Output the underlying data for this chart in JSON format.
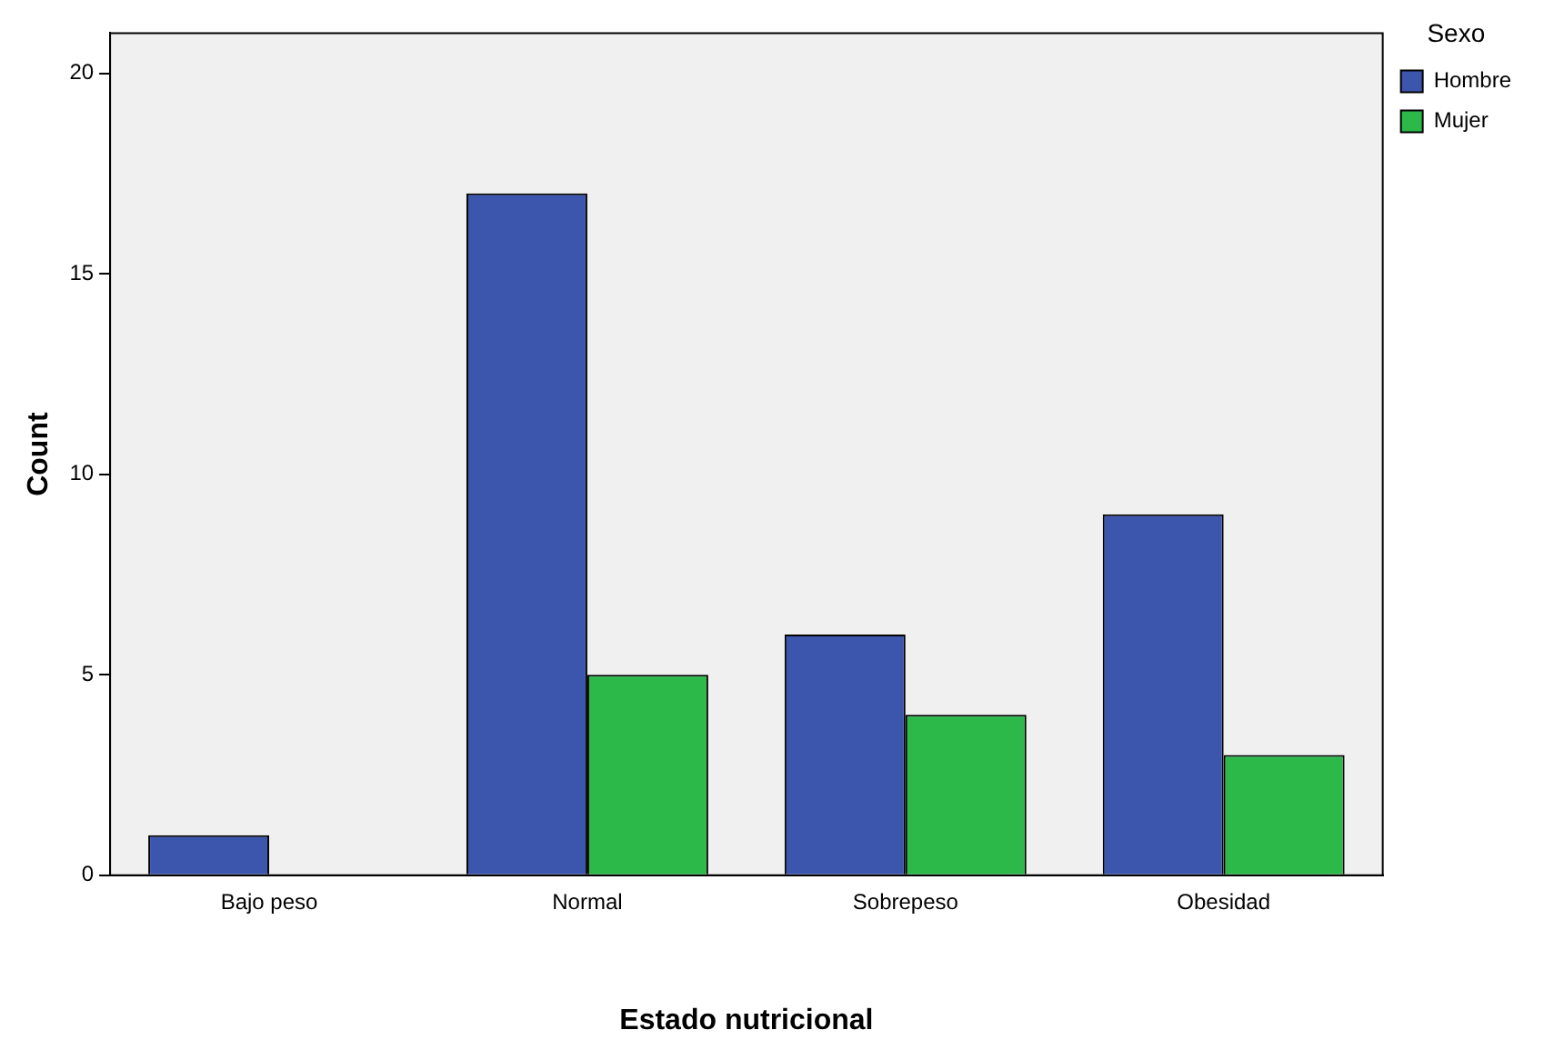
{
  "chart_data": {
    "type": "bar",
    "xlabel": "Estado nutricional",
    "ylabel": "Count",
    "legend_title": "Sexo",
    "categories": [
      "Bajo peso",
      "Normal",
      "Sobrepeso",
      "Obesidad"
    ],
    "series": [
      {
        "name": "Hombre",
        "color": "#3c55ad",
        "values": [
          1,
          17,
          6,
          9
        ]
      },
      {
        "name": "Mujer",
        "color": "#2db84a",
        "values": [
          0,
          5,
          4,
          3
        ]
      }
    ],
    "ylim": [
      0,
      21
    ],
    "yticks": [
      0,
      5,
      10,
      15,
      20
    ],
    "grid": false,
    "legend": "top right"
  }
}
